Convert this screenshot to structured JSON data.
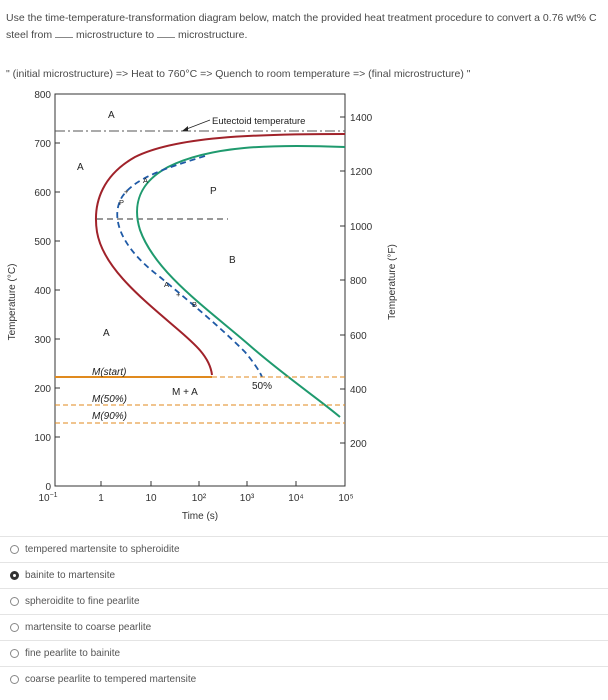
{
  "question": {
    "line1": "Use the time-temperature-transformation diagram below, match the provided heat treatment procedure to convert a 0.76 wt% C",
    "line2_a": "steel from",
    "line2_b": "microstructure to",
    "line2_c": "microstructure.",
    "procedure": "\" (initial microstructure) => Heat to 760°C => Quench to room temperature => (final microstructure) \""
  },
  "diagram": {
    "y_left_label": "Temperature (°C)",
    "y_right_label": "Temperature (°F)",
    "x_label": "Time (s)",
    "eutectoid_label": "Eutectoid temperature",
    "y_left_ticks": [
      "0",
      "100",
      "200",
      "300",
      "400",
      "500",
      "600",
      "700",
      "800"
    ],
    "y_right_ticks": [
      "200",
      "400",
      "600",
      "800",
      "1000",
      "1200",
      "1400"
    ],
    "x_ticks": [
      "1",
      "10",
      "10²",
      "10³",
      "10⁴",
      "10⁵"
    ],
    "x_tick_first_base": "10",
    "x_tick_first_exp": "−1",
    "labels": {
      "A1": "A",
      "A2": "A",
      "A3": "A",
      "A_small1": "A",
      "A_small2": "A",
      "P": "P",
      "P_small": "P",
      "B": "B",
      "B_small": "B",
      "M_start": "M(start)",
      "M50": "M(50%)",
      "M90": "M(90%)",
      "MA": "M + A",
      "pct50": "50%",
      "plus1": "+",
      "plus2": "+"
    },
    "colors": {
      "start_curve": "#a0222a",
      "finish_curve": "#1f9a6e",
      "dashed": "#1f5aa6",
      "ms_line": "#e08a1e"
    }
  },
  "options": [
    {
      "label": "tempered martensite to spheroidite",
      "selected": false
    },
    {
      "label": "bainite to martensite",
      "selected": true
    },
    {
      "label": "spheroidite to fine pearlite",
      "selected": false
    },
    {
      "label": "martensite to coarse pearlite",
      "selected": false
    },
    {
      "label": "fine pearlite to bainite",
      "selected": false
    },
    {
      "label": "coarse pearlite to tempered martensite",
      "selected": false
    }
  ]
}
